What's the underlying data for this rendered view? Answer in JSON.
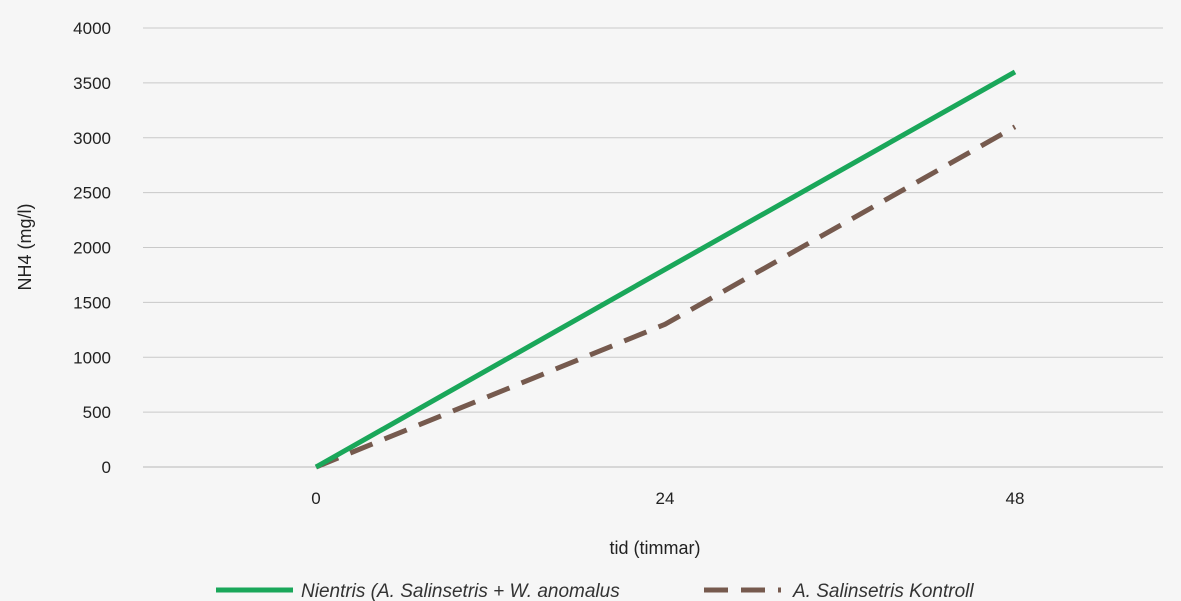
{
  "chart_data": {
    "type": "line",
    "title": "",
    "xlabel": "tid (timmar)",
    "ylabel": "NH4 (mg/l)",
    "categories": [
      "0",
      "24",
      "48"
    ],
    "ylim": [
      0,
      4000
    ],
    "yticks": [
      0,
      500,
      1000,
      1500,
      2000,
      2500,
      3000,
      3500,
      4000
    ],
    "grid": true,
    "legend_position": "bottom",
    "series": [
      {
        "name": "Nientris (A. Salinsetris + W. anomalus",
        "color": "#1aa75a",
        "style": "solid",
        "values": [
          0,
          1800,
          3600
        ]
      },
      {
        "name": "A. Salinsetris Kontroll",
        "color": "#765a4e",
        "style": "dashed",
        "values": [
          0,
          1300,
          3100
        ]
      }
    ]
  }
}
